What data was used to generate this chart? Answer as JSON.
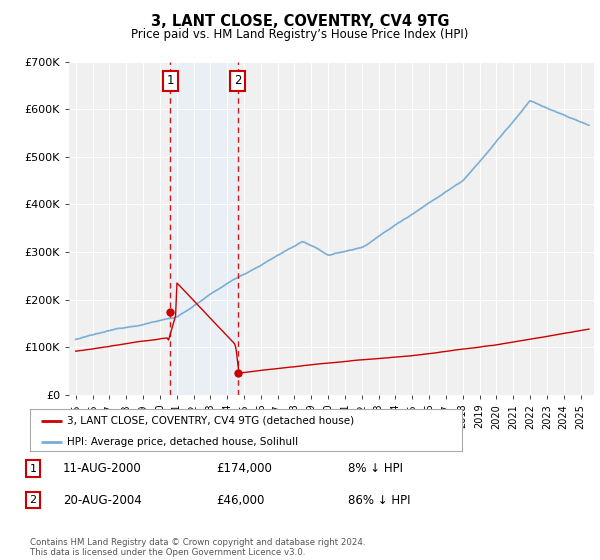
{
  "title": "3, LANT CLOSE, COVENTRY, CV4 9TG",
  "subtitle": "Price paid vs. HM Land Registry’s House Price Index (HPI)",
  "legend_label_red": "3, LANT CLOSE, COVENTRY, CV4 9TG (detached house)",
  "legend_label_blue": "HPI: Average price, detached house, Solihull",
  "transaction1_date": "11-AUG-2000",
  "transaction1_price": 174000,
  "transaction1_label": "£174,000",
  "transaction1_pct": "8% ↓ HPI",
  "transaction2_date": "20-AUG-2004",
  "transaction2_price": 46000,
  "transaction2_label": "£46,000",
  "transaction2_pct": "86% ↓ HPI",
  "footer": "Contains HM Land Registry data © Crown copyright and database right 2024.\nThis data is licensed under the Open Government Licence v3.0.",
  "ylim": [
    0,
    700000
  ],
  "ytick_vals": [
    0,
    100000,
    200000,
    300000,
    400000,
    500000,
    600000,
    700000
  ],
  "ytick_labels": [
    "£0",
    "£100K",
    "£200K",
    "£300K",
    "£400K",
    "£500K",
    "£600K",
    "£700K"
  ],
  "xmin": 1994.6,
  "xmax": 2025.8,
  "background_color": "#ffffff",
  "plot_bg_color": "#f0f0f0",
  "grid_color": "#ffffff",
  "red_color": "#cc0000",
  "blue_color": "#7aaed6",
  "shade_color": "#ddeeff",
  "t1_year": 2000.625,
  "t2_year": 2004.625
}
